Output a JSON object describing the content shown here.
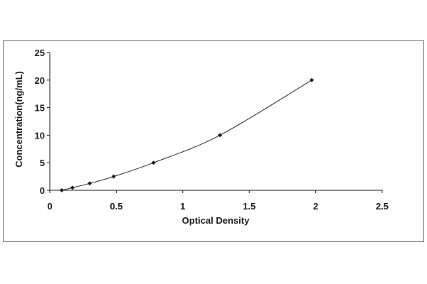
{
  "chart_data": {
    "type": "scatter",
    "title": "",
    "xlabel": "Optical Density",
    "ylabel": "Concentration(ng/mL)",
    "xlim": [
      0,
      2.5
    ],
    "ylim": [
      0,
      25
    ],
    "x_ticks": [
      "0",
      "0.5",
      "1",
      "1.5",
      "2",
      "2.5"
    ],
    "y_ticks": [
      "0",
      "5",
      "10",
      "15",
      "20",
      "25"
    ],
    "grid": false,
    "legend": "none",
    "series": [
      {
        "points": [
          {
            "x": 0.09,
            "y": 0
          },
          {
            "x": 0.17,
            "y": 0.47
          },
          {
            "x": 0.3,
            "y": 1.25
          },
          {
            "x": 0.48,
            "y": 2.5
          },
          {
            "x": 0.78,
            "y": 5
          },
          {
            "x": 1.28,
            "y": 10
          },
          {
            "x": 1.97,
            "y": 20
          }
        ],
        "color": "#1a1a1a",
        "trendline": "smooth curve"
      }
    ]
  }
}
